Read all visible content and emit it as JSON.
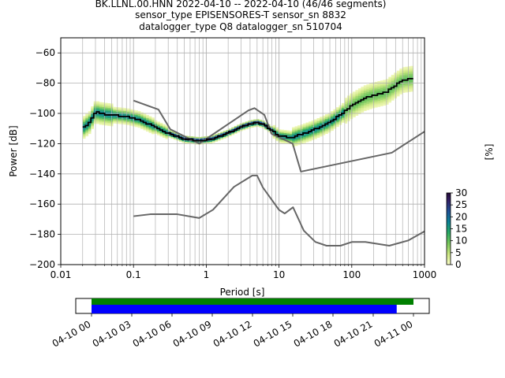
{
  "header": {
    "title_line1": "BK.LLNL.00.HNN   2022-04-10 -- 2022-04-10  (46/46 segments)",
    "title_line2": "sensor_type EPISENSORES-T sensor_sn 8832",
    "title_line3": "datalogger_type Q8 datalogger_sn 510704"
  },
  "chart_data": [
    {
      "type": "heatmap",
      "xlabel": "Period [s]",
      "ylabel": "Power [dB]",
      "xscale": "log",
      "xlim": [
        0.01,
        1000
      ],
      "ylim": [
        -200,
        -50
      ],
      "grid": true,
      "xticks": [
        0.01,
        0.1,
        1,
        10,
        100,
        1000
      ],
      "xtick_labels": [
        "0.01",
        "0.1",
        "1",
        "10",
        "100",
        "1000"
      ],
      "yticks": [
        -200,
        -180,
        -160,
        -140,
        -120,
        -100,
        -80,
        -60
      ],
      "ytick_labels": [
        "−200",
        "−180",
        "−160",
        "−140",
        "−120",
        "−100",
        "−80",
        "−60"
      ],
      "colorbar": {
        "label": "[%]",
        "min": 0,
        "max": 30,
        "ticks": [
          0,
          5,
          10,
          15,
          20,
          25,
          30
        ],
        "tick_labels": [
          "0",
          "5",
          "10",
          "15",
          "20",
          "25",
          "30"
        ]
      },
      "mode_curve": {
        "x": [
          0.02,
          0.025,
          0.03,
          0.035,
          0.05,
          0.08,
          0.12,
          0.2,
          0.3,
          0.5,
          0.8,
          1.2,
          2,
          3,
          4,
          5,
          6,
          8,
          10,
          15,
          20,
          30,
          50,
          70,
          100,
          150,
          200,
          300,
          500,
          700
        ],
        "y": [
          -110,
          -106,
          -99,
          -100,
          -101,
          -102,
          -104,
          -109,
          -113,
          -117,
          -118,
          -117,
          -113,
          -109,
          -107,
          -106,
          -107,
          -111,
          -115,
          -116,
          -114,
          -111,
          -106,
          -101,
          -95,
          -90,
          -88,
          -86,
          -78,
          -77
        ]
      },
      "nlnm": {
        "x": [
          0.1,
          0.17,
          0.4,
          0.8,
          1.24,
          2.4,
          4.3,
          5,
          6,
          10,
          12,
          15.6,
          21.9,
          31.6,
          45,
          70,
          101,
          154,
          328,
          600,
          1000
        ],
        "y": [
          -168,
          -166.7,
          -166.7,
          -169.2,
          -163.7,
          -148.6,
          -141.1,
          -141.1,
          -149,
          -163.8,
          -166.2,
          -162.1,
          -177.5,
          -185,
          -187.5,
          -187.5,
          -185,
          -185,
          -187.5,
          -184,
          -178
        ]
      },
      "nhnm": {
        "x": [
          0.1,
          0.22,
          0.32,
          0.8,
          3.8,
          4.6,
          6.3,
          7.9,
          15.4,
          20,
          354.8,
          1000
        ],
        "y": [
          -91.5,
          -97.4,
          -110.5,
          -120,
          -98,
          -96.5,
          -101,
          -113.5,
          -120,
          -138.5,
          -126,
          -112
        ]
      }
    },
    {
      "type": "bar",
      "x_tick_labels": [
        "04-10 00",
        "04-10 03",
        "04-10 06",
        "04-10 09",
        "04-10 12",
        "04-10 15",
        "04-10 18",
        "04-10 21",
        "04-11 00"
      ],
      "series": [
        {
          "start": "04-10 00",
          "end": "04-11 00",
          "color": "#008000"
        },
        {
          "start": "04-10 00",
          "end": "04-10 22:45",
          "color": "#0000ff"
        }
      ]
    }
  ]
}
